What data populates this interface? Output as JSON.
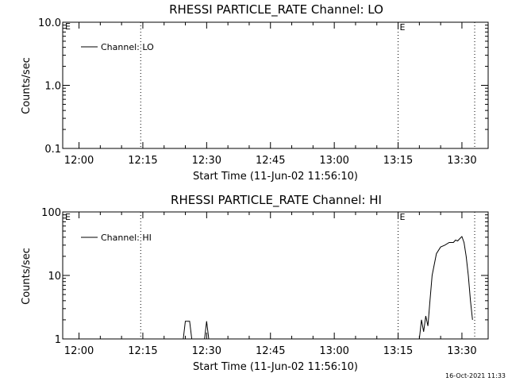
{
  "chart_data": [
    {
      "type": "line",
      "title": "RHESSI PARTICLE_RATE Channel: LO",
      "xlabel": "Start Time (11-Jun-02 11:56:10)",
      "ylabel": "Counts/sec",
      "yscale": "log",
      "ylim": [
        0.1,
        10.0
      ],
      "xlim": [
        "11:56:10",
        "13:36:10"
      ],
      "x_ticks": [
        "12:00",
        "12:15",
        "12:30",
        "12:45",
        "13:00",
        "13:15",
        "13:30"
      ],
      "y_ticks": [
        "0.1",
        "1.0",
        "10.0"
      ],
      "markers": [
        {
          "time": "12:14:30",
          "label": ""
        },
        {
          "time": "13:15:00",
          "label": "E"
        },
        {
          "time": "13:33:00",
          "label": ""
        }
      ],
      "corner_label": "E",
      "legend": "Channel: LO",
      "legend_position": "top-left",
      "series": []
    },
    {
      "type": "line",
      "title": "RHESSI PARTICLE_RATE Channel: HI",
      "xlabel": "Start Time (11-Jun-02 11:56:10)",
      "ylabel": "Counts/sec",
      "yscale": "log",
      "ylim": [
        1,
        100
      ],
      "xlim": [
        "11:56:10",
        "13:36:10"
      ],
      "x_ticks": [
        "12:00",
        "12:15",
        "12:30",
        "12:45",
        "13:00",
        "13:15",
        "13:30"
      ],
      "y_ticks": [
        "1",
        "10",
        "100"
      ],
      "markers": [
        {
          "time": "12:14:30",
          "label": ""
        },
        {
          "time": "13:15:00",
          "label": "E"
        },
        {
          "time": "13:33:00",
          "label": ""
        }
      ],
      "corner_label": "E",
      "legend": "Channel: HI",
      "legend_position": "top-left",
      "series": [
        {
          "x": [
            "12:24:30",
            "12:25:00",
            "12:25:30",
            "12:26:00",
            "12:26:30",
            "12:29:30",
            "12:30:00",
            "12:30:30",
            "13:20:00",
            "13:20:30",
            "13:21:00",
            "13:21:30",
            "13:22:00",
            "13:22:30",
            "13:23:00",
            "13:24:00",
            "13:25:00",
            "13:26:00",
            "13:27:00",
            "13:28:00",
            "13:28:30",
            "13:29:00",
            "13:29:30",
            "13:30:00",
            "13:30:30",
            "13:31:00",
            "13:31:30",
            "13:32:00",
            "13:32:30"
          ],
          "y": [
            1.0,
            1.9,
            1.9,
            1.9,
            1.0,
            1.0,
            1.9,
            1.0,
            1.0,
            2.0,
            1.3,
            2.3,
            1.6,
            4.0,
            10.0,
            22.0,
            28.0,
            30.0,
            33.0,
            33.0,
            36.0,
            35.0,
            38.0,
            41.0,
            33.0,
            20.0,
            10.0,
            4.0,
            2.0
          ]
        }
      ]
    }
  ],
  "timestamp": "16-Oct-2021 11:33"
}
